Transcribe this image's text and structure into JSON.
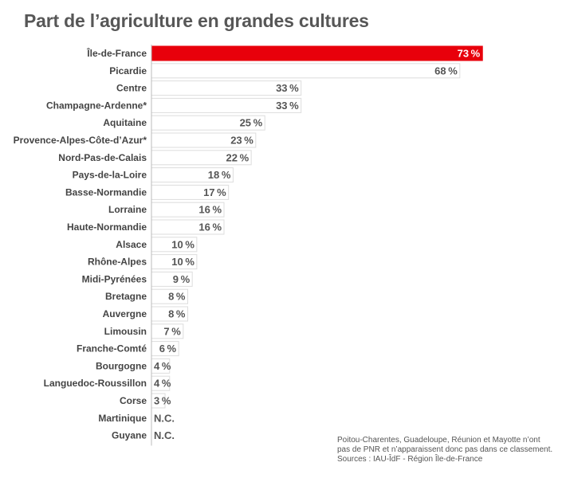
{
  "chart_data": {
    "type": "bar",
    "orientation": "horizontal",
    "title": "Part de l’agriculture en grandes cultures",
    "categories": [
      "Île-de-France",
      "Picardie",
      "Centre",
      "Champagne-Ardenne*",
      "Aquitaine",
      "Provence-Alpes-Côte-d’Azur*",
      "Nord-Pas-de-Calais",
      "Pays-de-la-Loire",
      "Basse-Normandie",
      "Lorraine",
      "Haute-Normandie",
      "Alsace",
      "Rhône-Alpes",
      "Midi-Pyrénées",
      "Bretagne",
      "Auvergne",
      "Limousin",
      "Franche-Comté",
      "Bourgogne",
      "Languedoc-Roussillon",
      "Corse",
      "Martinique",
      "Guyane"
    ],
    "values": [
      73,
      68,
      33,
      33,
      25,
      23,
      22,
      18,
      17,
      16,
      16,
      10,
      10,
      9,
      8,
      8,
      7,
      6,
      4,
      4,
      3,
      null,
      null
    ],
    "value_labels": [
      "73 %",
      "68 %",
      "33 %",
      "33 %",
      "25 %",
      "23 %",
      "22 %",
      "18 %",
      "17 %",
      "16 %",
      "16 %",
      "10 %",
      "10 %",
      "9 %",
      "8 %",
      "8 %",
      "7 %",
      "6 %",
      "4 %",
      "4 %",
      "3 %",
      "N.C.",
      "N.C."
    ],
    "xlim": [
      0,
      77
    ],
    "highlight_index": 0,
    "colors": {
      "highlight": "#e8000b",
      "bar_fill": "#ffffff",
      "bar_stroke": "#dddddd",
      "label": "#444444",
      "value_label": "#555555",
      "highlight_value_label": "#ffffff"
    },
    "grid": false,
    "legend": "none"
  },
  "notes": [
    "Poitou-Charentes, Guadeloupe, Réunion et Mayotte n’ont",
    "pas de PNR et n’apparaissent donc pas dans ce classement.",
    "Sources : IAU-ÎdF - Région Île-de-France"
  ]
}
